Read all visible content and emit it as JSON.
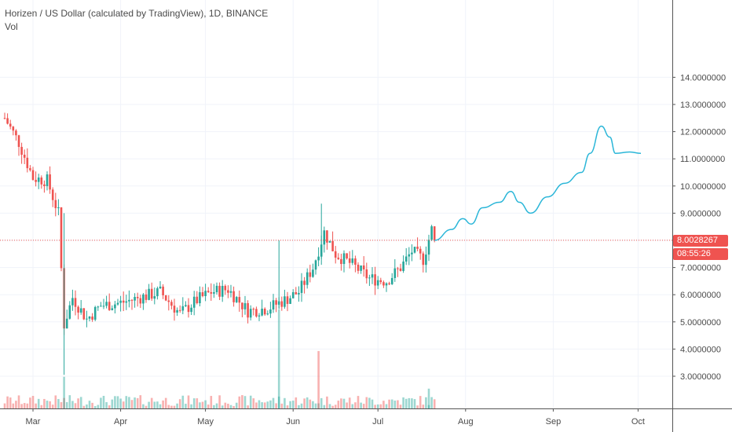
{
  "header": {
    "symbol_line": "Horizen / US Dollar (calculated by TradingView), 1D, BINANCE",
    "volume_label": "Vol"
  },
  "last_price": {
    "value": "8.0028267",
    "countdown": "08:55:26",
    "color": "#ef5350"
  },
  "colors": {
    "up": "#26a69a",
    "down": "#ef5350",
    "projection": "#2bb6d8",
    "grid": "#f0f3fa",
    "axis": "#555555"
  },
  "chart_data": {
    "type": "candlestick",
    "x_tick_labels": [
      "Mar",
      "Apr",
      "May",
      "Jun",
      "Jul",
      "Aug",
      "Sep",
      "Oct"
    ],
    "y_tick_labels": [
      "3.0000000",
      "4.0000000",
      "5.0000000",
      "6.0000000",
      "7.0000000",
      "8.0000000",
      "9.0000000",
      "10.0000000",
      "11.0000000",
      "12.0000000",
      "13.0000000",
      "14.0000000"
    ],
    "ylim": [
      2.0,
      14.5
    ],
    "last_price": 8.0028267,
    "close_series": [
      {
        "date": "2020-02-20",
        "close": 12.5
      },
      {
        "date": "2020-02-25",
        "close": 11.6
      },
      {
        "date": "2020-03-01",
        "close": 10.3
      },
      {
        "date": "2020-03-06",
        "close": 10.2
      },
      {
        "date": "2020-03-10",
        "close": 9.0
      },
      {
        "date": "2020-03-12",
        "close": 4.9
      },
      {
        "date": "2020-03-15",
        "close": 5.9
      },
      {
        "date": "2020-03-20",
        "close": 5.1
      },
      {
        "date": "2020-03-25",
        "close": 5.6
      },
      {
        "date": "2020-04-01",
        "close": 5.7
      },
      {
        "date": "2020-04-08",
        "close": 5.9
      },
      {
        "date": "2020-04-15",
        "close": 6.1
      },
      {
        "date": "2020-04-22",
        "close": 5.3
      },
      {
        "date": "2020-04-28",
        "close": 5.8
      },
      {
        "date": "2020-05-03",
        "close": 6.1
      },
      {
        "date": "2020-05-09",
        "close": 6.2
      },
      {
        "date": "2020-05-16",
        "close": 5.4
      },
      {
        "date": "2020-05-23",
        "close": 5.5
      },
      {
        "date": "2020-05-29",
        "close": 5.8
      },
      {
        "date": "2020-06-03",
        "close": 6.1
      },
      {
        "date": "2020-06-08",
        "close": 7.0
      },
      {
        "date": "2020-06-12",
        "close": 8.3
      },
      {
        "date": "2020-06-16",
        "close": 7.5
      },
      {
        "date": "2020-06-22",
        "close": 7.1
      },
      {
        "date": "2020-06-28",
        "close": 6.6
      },
      {
        "date": "2020-07-04",
        "close": 6.5
      },
      {
        "date": "2020-07-09",
        "close": 7.0
      },
      {
        "date": "2020-07-13",
        "close": 7.6
      },
      {
        "date": "2020-07-17",
        "close": 7.3
      },
      {
        "date": "2020-07-20",
        "close": 8.4
      },
      {
        "date": "2020-07-21",
        "close": 8.0
      }
    ],
    "projection_series": [
      {
        "date": "2020-07-21",
        "close": 8.0
      },
      {
        "date": "2020-07-27",
        "close": 8.4
      },
      {
        "date": "2020-07-31",
        "close": 8.8
      },
      {
        "date": "2020-08-03",
        "close": 8.6
      },
      {
        "date": "2020-08-07",
        "close": 9.2
      },
      {
        "date": "2020-08-13",
        "close": 9.4
      },
      {
        "date": "2020-08-17",
        "close": 9.8
      },
      {
        "date": "2020-08-20",
        "close": 9.4
      },
      {
        "date": "2020-08-24",
        "close": 9.0
      },
      {
        "date": "2020-08-30",
        "close": 9.6
      },
      {
        "date": "2020-09-05",
        "close": 10.1
      },
      {
        "date": "2020-09-11",
        "close": 10.5
      },
      {
        "date": "2020-09-14",
        "close": 11.2
      },
      {
        "date": "2020-09-18",
        "close": 12.2
      },
      {
        "date": "2020-09-21",
        "close": 11.8
      },
      {
        "date": "2020-09-23",
        "close": 11.2
      },
      {
        "date": "2020-09-28",
        "close": 11.25
      },
      {
        "date": "2020-10-02",
        "close": 11.2
      }
    ],
    "volume_spikes": [
      {
        "date": "2020-03-12",
        "volume_rel": 0.32,
        "direction": "up"
      },
      {
        "date": "2020-05-27",
        "volume_rel": 1.0,
        "direction": "up"
      },
      {
        "date": "2020-06-10",
        "volume_rel": 0.58,
        "direction": "down"
      },
      {
        "date": "2020-07-19",
        "volume_rel": 0.2,
        "direction": "up"
      }
    ]
  }
}
